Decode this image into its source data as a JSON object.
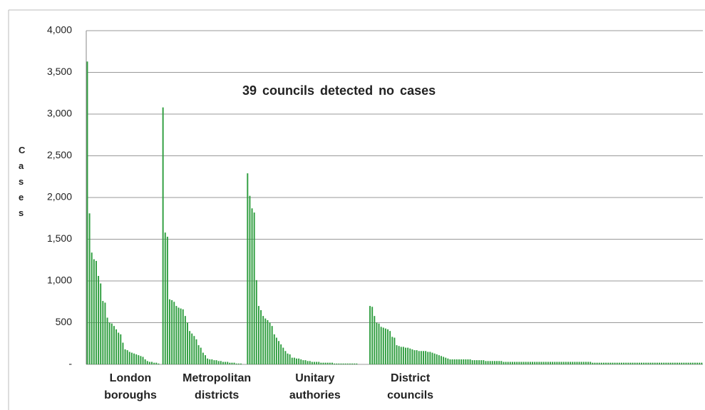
{
  "chart_data": {
    "type": "grouped-bar",
    "annotation": "39  councils  detected no cases",
    "y_label": "Cases",
    "color": "#2f9e3f",
    "grid": true,
    "ylim": [
      0,
      4000
    ],
    "yticks": [
      {
        "value": 0,
        "label": "-"
      },
      {
        "value": 500,
        "label": "500"
      },
      {
        "value": 1000,
        "label": "1,000"
      },
      {
        "value": 1500,
        "label": "1,500"
      },
      {
        "value": 2000,
        "label": "2,000"
      },
      {
        "value": 2500,
        "label": "2,500"
      },
      {
        "value": 3000,
        "label": "3,000"
      },
      {
        "value": 3500,
        "label": "3,500"
      },
      {
        "value": 4000,
        "label": "4,000"
      }
    ],
    "groups": [
      {
        "name": "London boroughs",
        "values": [
          3630,
          1810,
          1340,
          1260,
          1240,
          1060,
          970,
          760,
          740,
          560,
          500,
          490,
          460,
          420,
          380,
          360,
          260,
          180,
          170,
          150,
          140,
          130,
          120,
          110,
          100,
          90,
          60,
          40,
          30,
          30,
          20,
          20,
          10
        ]
      },
      {
        "name": "Metropolitan districts",
        "values": [
          3080,
          1580,
          1530,
          780,
          770,
          750,
          700,
          680,
          670,
          660,
          580,
          500,
          400,
          370,
          340,
          300,
          230,
          200,
          140,
          110,
          70,
          60,
          60,
          50,
          50,
          40,
          40,
          30,
          30,
          30,
          20,
          20,
          20,
          10,
          10,
          10
        ]
      },
      {
        "name": "Unitary authories",
        "values": [
          2290,
          2020,
          1870,
          1820,
          1010,
          700,
          650,
          580,
          550,
          530,
          500,
          460,
          360,
          320,
          280,
          240,
          200,
          160,
          130,
          120,
          80,
          80,
          70,
          70,
          60,
          50,
          50,
          40,
          40,
          30,
          30,
          30,
          30,
          20,
          20,
          20,
          20,
          20,
          20,
          10,
          10,
          10,
          10,
          10,
          10,
          10,
          10,
          10,
          10,
          10
        ]
      },
      {
        "name": "District councils",
        "values": [
          700,
          690,
          580,
          500,
          490,
          450,
          440,
          430,
          420,
          400,
          330,
          320,
          230,
          220,
          210,
          210,
          200,
          200,
          190,
          180,
          170,
          170,
          160,
          160,
          160,
          160,
          150,
          150,
          140,
          130,
          120,
          110,
          100,
          90,
          80,
          70,
          60,
          60,
          60,
          60,
          60,
          60,
          60,
          60,
          60,
          60,
          50,
          50,
          50,
          50,
          50,
          50,
          40,
          40,
          40,
          40,
          40,
          40,
          40,
          40,
          30,
          30,
          30,
          30,
          30,
          30,
          30,
          30,
          30,
          30,
          30,
          30,
          30,
          30,
          30,
          30,
          30,
          30,
          30,
          30,
          30,
          30,
          30,
          30,
          30,
          30,
          30,
          30,
          30,
          30,
          30,
          30,
          30,
          30,
          30,
          30,
          30,
          30,
          30,
          30,
          20,
          20,
          20,
          20,
          20,
          20,
          20,
          20,
          20,
          20,
          20,
          20,
          20,
          20,
          20,
          20,
          20,
          20,
          20,
          20,
          20,
          20,
          20,
          20,
          20,
          20,
          20,
          20,
          20,
          20,
          20,
          20,
          20,
          20,
          20,
          20,
          20,
          20,
          20,
          20,
          20,
          20,
          20,
          20,
          20,
          20,
          20,
          20,
          20,
          20
        ]
      }
    ]
  }
}
